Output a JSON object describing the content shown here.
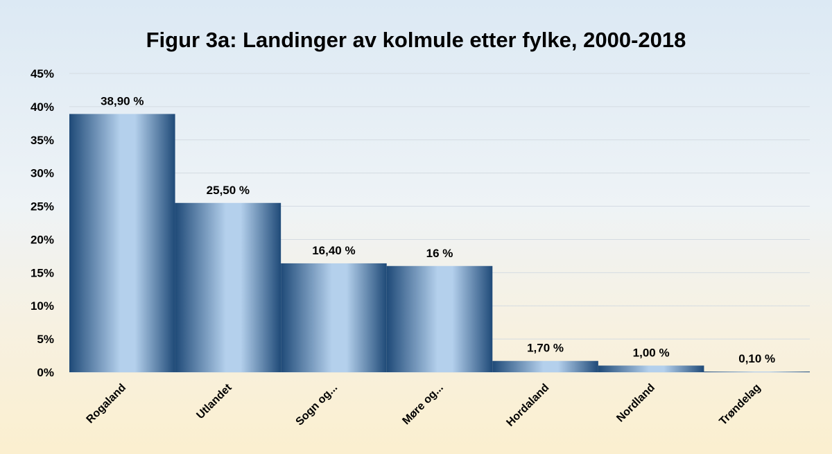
{
  "chart_data": {
    "type": "bar",
    "title": "Figur 3a: Landinger av kolmule etter fylke, 2000-2018",
    "xlabel": "",
    "ylabel": "",
    "categories": [
      "Rogaland",
      "Utlandet",
      "Sogn og...",
      "Møre og...",
      "Hordaland",
      "Nordland",
      "Trøndelag"
    ],
    "values": [
      38.9,
      25.5,
      16.4,
      16.0,
      1.7,
      1.0,
      0.1
    ],
    "data_labels": [
      "38,90 %",
      "25,50 %",
      "16,40 %",
      "16 %",
      "1,70 %",
      "1,00 %",
      "0,10 %"
    ],
    "ylim": [
      0,
      45
    ],
    "yticks": [
      0,
      5,
      10,
      15,
      20,
      25,
      30,
      35,
      40,
      45
    ],
    "ytick_labels": [
      "0%",
      "5%",
      "10%",
      "15%",
      "20%",
      "25%",
      "30%",
      "35%",
      "40%",
      "45%"
    ],
    "grid": true,
    "legend": "none",
    "colors": {
      "bar_dark": "#1f4a78",
      "bar_light": "#b4d0ec",
      "grid": "#d4dbe2"
    }
  }
}
